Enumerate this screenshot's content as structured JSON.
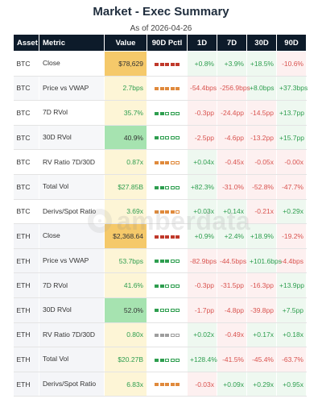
{
  "title": "Market - Exec Summary",
  "subtitle": "As of 2026-04-26",
  "watermark": "amberdata",
  "colors": {
    "header_bg": "#0d1b2a",
    "positive": "#2e9e4f",
    "negative": "#d9534f",
    "pctl_high": "#f5c96a",
    "pctl_low": "#a6e3b0",
    "pctl_mid": "#fdf5d6",
    "pctl_bar_red": "#c0392b",
    "pctl_bar_orange": "#e08a3c",
    "pctl_bar_green": "#2e9e4f",
    "pctl_bar_gray": "#9e9e9e"
  },
  "chart_data": {
    "type": "table",
    "columns": [
      "Asset",
      "Metric",
      "Value",
      "90D Pctl",
      "1D",
      "7D",
      "30D",
      "90D"
    ],
    "rows": [
      {
        "asset": "BTC",
        "metric": "Close",
        "value": "$78,629",
        "pctl_segments": 5,
        "pctl_color": "red",
        "value_bg": "high",
        "changes": [
          "+0.8%",
          "+3.9%",
          "+18.5%",
          "-10.6%"
        ]
      },
      {
        "asset": "BTC",
        "metric": "Price vs VWAP",
        "value": "2.7bps",
        "pctl_segments": 5,
        "pctl_color": "orange",
        "value_bg": "mid",
        "changes": [
          "-54.4bps",
          "-256.9bps",
          "+8.0bps",
          "+37.3bps"
        ]
      },
      {
        "asset": "BTC",
        "metric": "7D RVol",
        "value": "35.7%",
        "pctl_segments": 2,
        "pctl_color": "green",
        "value_bg": "mid",
        "changes": [
          "-0.3pp",
          "-24.4pp",
          "-14.5pp",
          "+13.7pp"
        ]
      },
      {
        "asset": "BTC",
        "metric": "30D RVol",
        "value": "40.9%",
        "pctl_segments": 1,
        "pctl_color": "green",
        "value_bg": "low",
        "changes": [
          "-2.5pp",
          "-4.6pp",
          "-13.2pp",
          "+15.7pp"
        ]
      },
      {
        "asset": "BTC",
        "metric": "RV Ratio 7D/30D",
        "value": "0.87x",
        "pctl_segments": 3,
        "pctl_color": "orange",
        "value_bg": "mid",
        "changes": [
          "+0.04x",
          "-0.45x",
          "-0.05x",
          "-0.00x"
        ]
      },
      {
        "asset": "BTC",
        "metric": "Total Vol",
        "value": "$27.85B",
        "pctl_segments": 2,
        "pctl_color": "green",
        "value_bg": "mid",
        "changes": [
          "+82.3%",
          "-31.0%",
          "-52.8%",
          "-47.7%"
        ]
      },
      {
        "asset": "BTC",
        "metric": "Derivs/Spot Ratio",
        "value": "3.69x",
        "pctl_segments": 4,
        "pctl_color": "orange",
        "value_bg": "mid",
        "changes": [
          "+0.03x",
          "+0.14x",
          "-0.21x",
          "+0.29x"
        ]
      },
      {
        "asset": "ETH",
        "metric": "Close",
        "value": "$2,368.64",
        "pctl_segments": 5,
        "pctl_color": "red",
        "value_bg": "high",
        "changes": [
          "+0.9%",
          "+2.4%",
          "+18.9%",
          "-19.2%"
        ]
      },
      {
        "asset": "ETH",
        "metric": "Price vs VWAP",
        "value": "53.7bps",
        "pctl_segments": 3,
        "pctl_color": "green",
        "value_bg": "mid",
        "changes": [
          "-82.9bps",
          "-44.5bps",
          "+101.6bps",
          "-4.4bps"
        ]
      },
      {
        "asset": "ETH",
        "metric": "7D RVol",
        "value": "41.6%",
        "pctl_segments": 2,
        "pctl_color": "green",
        "value_bg": "mid",
        "changes": [
          "-0.3pp",
          "-31.5pp",
          "-16.3pp",
          "+13.9pp"
        ]
      },
      {
        "asset": "ETH",
        "metric": "30D RVol",
        "value": "52.0%",
        "pctl_segments": 1,
        "pctl_color": "green",
        "value_bg": "low",
        "changes": [
          "-1.7pp",
          "-4.8pp",
          "-39.8pp",
          "+7.5pp"
        ]
      },
      {
        "asset": "ETH",
        "metric": "RV Ratio 7D/30D",
        "value": "0.80x",
        "pctl_segments": 3,
        "pctl_color": "gray",
        "value_bg": "mid",
        "changes": [
          "+0.02x",
          "-0.49x",
          "+0.17x",
          "+0.18x"
        ]
      },
      {
        "asset": "ETH",
        "metric": "Total Vol",
        "value": "$20.27B",
        "pctl_segments": 2,
        "pctl_color": "green",
        "value_bg": "mid",
        "changes": [
          "+128.4%",
          "-41.5%",
          "-45.4%",
          "-63.7%"
        ]
      },
      {
        "asset": "ETH",
        "metric": "Derivs/Spot Ratio",
        "value": "6.83x",
        "pctl_segments": 5,
        "pctl_color": "orange",
        "value_bg": "mid",
        "changes": [
          "-0.03x",
          "+0.09x",
          "+0.29x",
          "+0.95x"
        ]
      }
    ]
  }
}
